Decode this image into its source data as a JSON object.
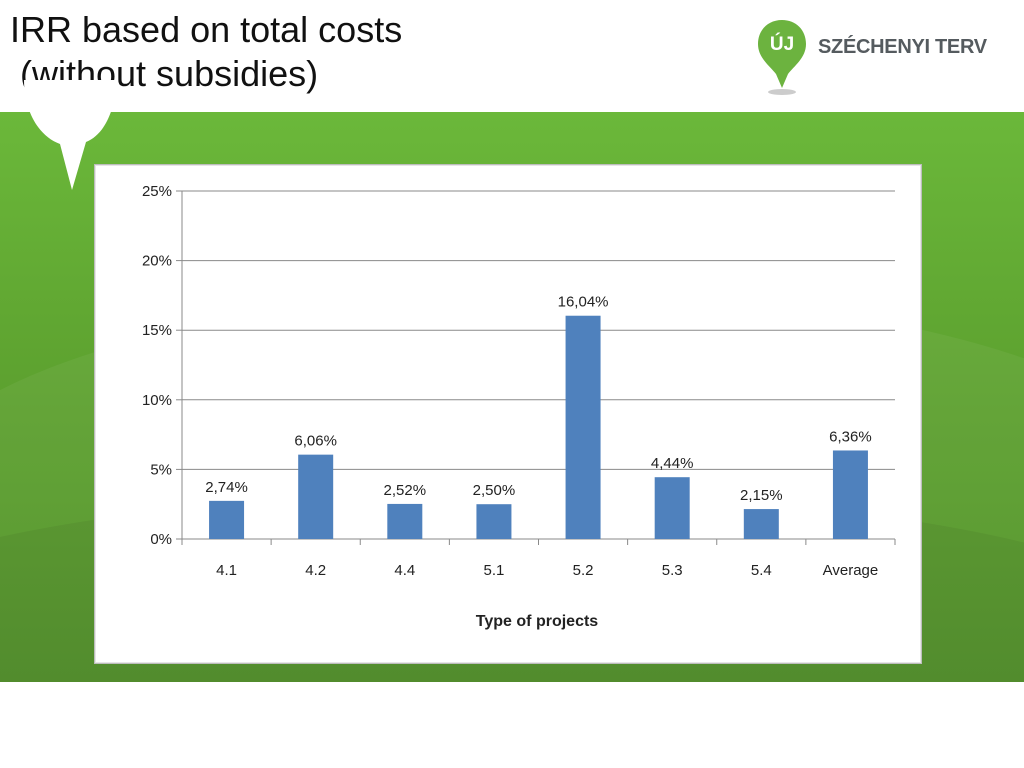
{
  "slide": {
    "title_lines": [
      "IRR based on total costs",
      " (without subsidies)"
    ]
  },
  "logo": {
    "badge_text": "ÚJ",
    "wordmark": "SZÉCHENYI TERV",
    "colors": {
      "badge": "#6cb33f",
      "text": "#555b5f"
    }
  },
  "theme": {
    "band_color": "#5ea330",
    "bar_color": "#4f81bd"
  },
  "chart_data": {
    "type": "bar",
    "title": "",
    "xlabel": "Type of projects",
    "ylabel": "",
    "categories": [
      "4.1",
      "4.2",
      "4.4",
      "5.1",
      "5.2",
      "5.3",
      "5.4",
      "Average"
    ],
    "values": [
      2.74,
      6.06,
      2.52,
      2.5,
      16.04,
      4.44,
      2.15,
      6.36
    ],
    "value_labels": [
      "2,74%",
      "6,06%",
      "2,52%",
      "2,50%",
      "16,04%",
      "4,44%",
      "2,15%",
      "6,36%"
    ],
    "ylim": [
      0,
      25
    ],
    "y_ticks": [
      0,
      5,
      10,
      15,
      20,
      25
    ],
    "y_tick_labels": [
      "0%",
      "5%",
      "10%",
      "15%",
      "20%",
      "25%"
    ],
    "grid": true,
    "legend": "none"
  }
}
